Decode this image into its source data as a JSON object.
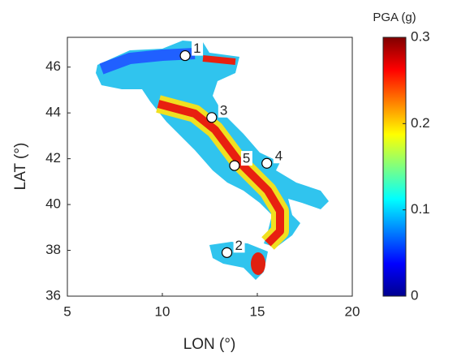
{
  "chart_data": {
    "type": "map",
    "xlabel": "LON (°)",
    "ylabel": "LAT (°)",
    "xlim": [
      5,
      20
    ],
    "xticks": [
      5,
      10,
      15,
      20
    ],
    "ylim": [
      36,
      47.3
    ],
    "yticks": [
      36,
      38,
      40,
      42,
      44,
      46
    ],
    "points": {
      "labels": [
        "1",
        "2",
        "3",
        "4",
        "5"
      ],
      "x": [
        11.2,
        13.4,
        12.6,
        15.5,
        13.8
      ],
      "y": [
        46.5,
        37.9,
        43.8,
        41.8,
        41.7
      ]
    },
    "colorbar": {
      "title": "PGA (g)",
      "lim": [
        0,
        0.3
      ],
      "ticks": [
        0,
        0.1,
        0.2,
        0.3
      ]
    }
  }
}
